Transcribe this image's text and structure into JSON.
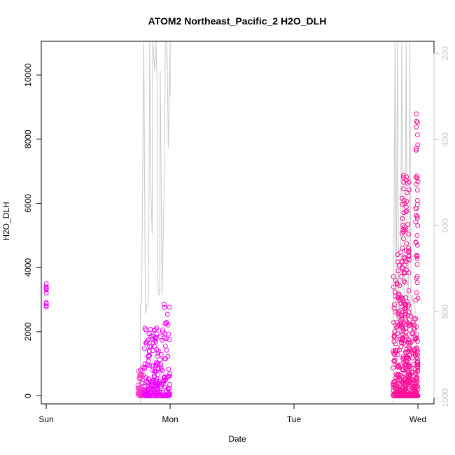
{
  "chart_data": {
    "type": "scatter",
    "title": "ATOM2 Northeast_Pacific_2 H2O_DLH",
    "xlabel": "Date",
    "ylabel": "H2O_DLH",
    "x_ticks": [
      {
        "label": "Sun",
        "value": 0
      },
      {
        "label": "Mon",
        "value": 1
      },
      {
        "label": "Tue",
        "value": 2
      },
      {
        "label": "Wed",
        "value": 3
      }
    ],
    "xlim": [
      -0.04,
      3.13
    ],
    "ylim": [
      -250,
      11050
    ],
    "y_ticks": [
      0,
      2000,
      4000,
      6000,
      8000,
      10000
    ],
    "y2_ticks": [
      200,
      400,
      600,
      800,
      1000
    ],
    "y2lim": [
      1014,
      172
    ],
    "y2_reversed": true,
    "grid": false,
    "legend": "none",
    "colors": {
      "low": "#ff33cc",
      "mid": "#ee00ff",
      "high": "#ff1199",
      "secondary_line": "#c8c8c8",
      "axes": "#000000"
    },
    "series": [
      {
        "values_description_free": true,
        "clusters": [
          {
            "x": [
              0.0,
              0.0
            ],
            "y": [
              2600,
              3500
            ],
            "n": 10,
            "color": "#ee00ff"
          },
          {
            "x": [
              0.74,
              0.79
            ],
            "y": [
              0,
              900
            ],
            "n": 50,
            "color": "#ff33cc"
          },
          {
            "x": [
              0.79,
              0.93
            ],
            "y": [
              0,
              2150
            ],
            "n": 140,
            "color": "#ee00ff"
          },
          {
            "x": [
              0.93,
              1.0
            ],
            "y": [
              0,
              3000
            ],
            "n": 60,
            "color": "#ee00ff"
          },
          {
            "x": [
              2.8,
              2.87
            ],
            "y": [
              0,
              4500
            ],
            "n": 140,
            "color": "#ff1199"
          },
          {
            "x": [
              2.87,
              2.93
            ],
            "y": [
              0,
              7300
            ],
            "n": 200,
            "color": "#ff1199"
          },
          {
            "x": [
              2.93,
              2.98
            ],
            "y": [
              0,
              2500
            ],
            "n": 80,
            "color": "#ff1199"
          },
          {
            "x": [
              2.98,
              3.0
            ],
            "y": [
              0,
              10600
            ],
            "n": 90,
            "color": "#ff1199"
          }
        ]
      }
    ],
    "secondary_series": {
      "name": "",
      "type": "line",
      "points": [
        [
          0.76,
          1014
        ],
        [
          0.76,
          782
        ],
        [
          0.77,
          782
        ],
        [
          0.787,
          172
        ],
        [
          0.8,
          805
        ],
        [
          0.815,
          782
        ],
        [
          0.825,
          782
        ],
        [
          0.835,
          172
        ],
        [
          0.845,
          520
        ],
        [
          0.855,
          620
        ],
        [
          0.86,
          172
        ],
        [
          0.875,
          240
        ],
        [
          0.885,
          172
        ],
        [
          0.895,
          270
        ],
        [
          0.9,
          720
        ],
        [
          0.905,
          760
        ],
        [
          0.915,
          760
        ],
        [
          0.92,
          240
        ],
        [
          0.935,
          760
        ],
        [
          0.95,
          540
        ],
        [
          0.962,
          172
        ],
        [
          0.975,
          172
        ],
        [
          0.985,
          420
        ],
        [
          1.0,
          172
        ],
        [
          1.0,
          300
        ],
        [
          2.8,
          1014
        ],
        [
          2.815,
          172
        ],
        [
          2.825,
          800
        ],
        [
          2.835,
          172
        ],
        [
          2.845,
          820
        ],
        [
          2.86,
          720
        ],
        [
          2.87,
          172
        ],
        [
          2.88,
          860
        ],
        [
          2.895,
          700
        ],
        [
          2.905,
          172
        ],
        [
          2.915,
          880
        ],
        [
          2.93,
          620
        ],
        [
          2.935,
          172
        ],
        [
          2.945,
          900
        ],
        [
          2.955,
          760
        ],
        [
          2.965,
          780
        ],
        [
          2.975,
          780
        ],
        [
          2.985,
          860
        ],
        [
          2.99,
          950
        ],
        [
          3.0,
          990
        ]
      ]
    }
  }
}
